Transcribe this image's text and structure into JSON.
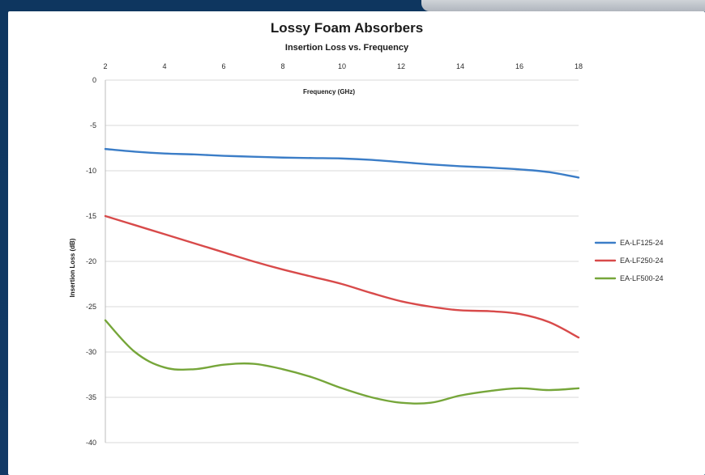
{
  "chart_data": {
    "type": "line",
    "title": "Lossy Foam Absorbers",
    "subtitle": "Insertion Loss vs. Frequency",
    "xlabel": "Frequency (GHz)",
    "ylabel": "Insertion Loss (dB)",
    "x_ticks": [
      2,
      4,
      6,
      8,
      10,
      12,
      14,
      16,
      18
    ],
    "y_ticks": [
      0,
      -5,
      -10,
      -15,
      -20,
      -25,
      -30,
      -35,
      -40
    ],
    "xlim": [
      2,
      18
    ],
    "ylim": [
      -40,
      0
    ],
    "grid": "horizontal",
    "legend_position": "right",
    "series": [
      {
        "name": "EA-LF125-24",
        "color": "#3b7dc7",
        "x": [
          2,
          3,
          4,
          5,
          6,
          7,
          8,
          9,
          10,
          11,
          12,
          13,
          14,
          15,
          16,
          17,
          18
        ],
        "values": [
          -7.6,
          -7.9,
          -8.1,
          -8.2,
          -8.35,
          -8.45,
          -8.55,
          -8.6,
          -8.65,
          -8.8,
          -9.05,
          -9.3,
          -9.5,
          -9.65,
          -9.85,
          -10.15,
          -10.75
        ]
      },
      {
        "name": "EA-LF250-24",
        "color": "#d84a4a",
        "x": [
          2,
          3,
          4,
          5,
          6,
          7,
          8,
          9,
          10,
          11,
          12,
          13,
          14,
          15,
          16,
          17,
          18
        ],
        "values": [
          -15.0,
          -16.0,
          -17.0,
          -18.0,
          -19.0,
          -20.0,
          -20.9,
          -21.7,
          -22.5,
          -23.5,
          -24.4,
          -25.0,
          -25.4,
          -25.5,
          -25.8,
          -26.7,
          -28.4
        ]
      },
      {
        "name": "EA-LF500-24",
        "color": "#76a63a",
        "x": [
          2,
          3,
          4,
          5,
          6,
          7,
          8,
          9,
          10,
          11,
          12,
          13,
          14,
          15,
          16,
          17,
          18
        ],
        "values": [
          -26.5,
          -30.0,
          -31.7,
          -31.9,
          -31.4,
          -31.3,
          -31.9,
          -32.8,
          -34.0,
          -35.0,
          -35.6,
          -35.6,
          -34.8,
          -34.3,
          -34.0,
          -34.2,
          -34.0
        ]
      }
    ]
  }
}
